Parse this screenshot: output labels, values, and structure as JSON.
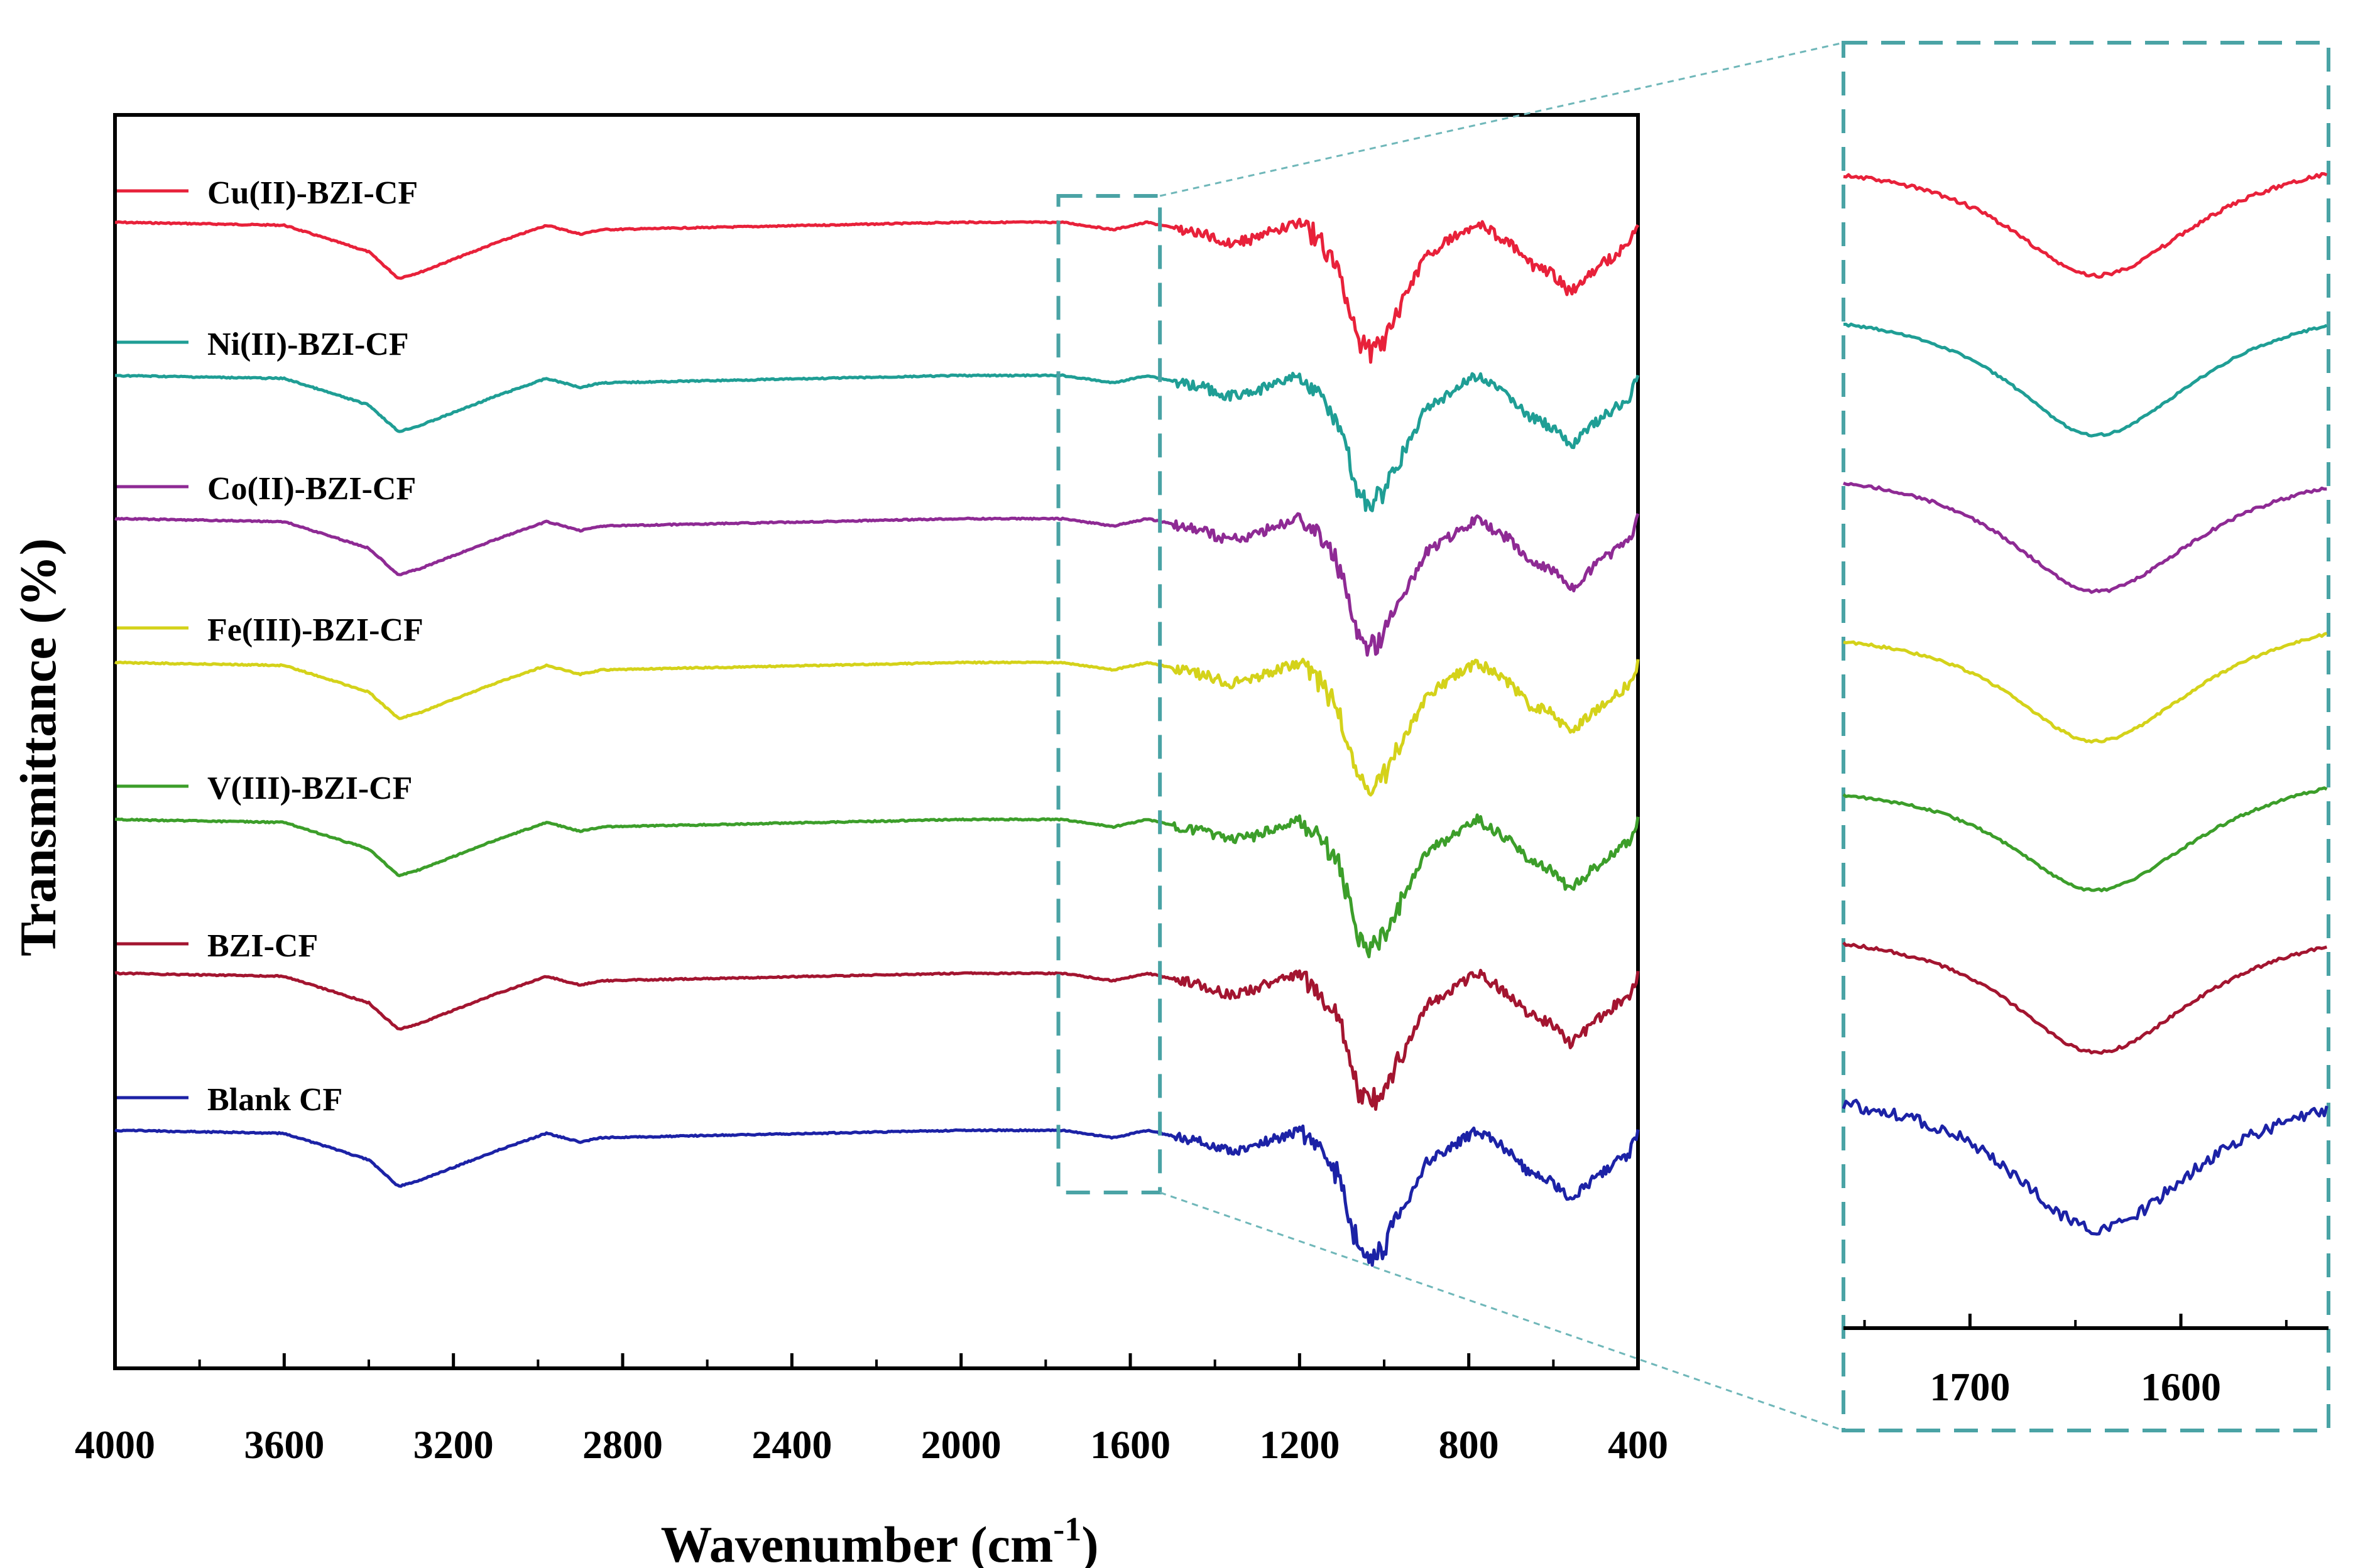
{
  "chart_data": [
    {
      "type": "line",
      "title": "",
      "xlabel": "Wavenumber",
      "xlabel_unit_base": "(cm",
      "xlabel_unit_exp": "-1",
      "xlabel_unit_close": ")",
      "ylabel": "Transmittance (%)",
      "xlim": [
        4000,
        400
      ],
      "x_reversed": true,
      "x_ticks": [
        "4000",
        "3600",
        "3200",
        "2800",
        "2400",
        "2000",
        "1600",
        "1200",
        "800",
        "400"
      ],
      "x_tick_values": [
        4000,
        3600,
        3200,
        2800,
        2400,
        2000,
        1600,
        1200,
        800,
        400
      ],
      "y_ticks_shown": false,
      "series": [
        {
          "name": "Cu(II)-BZI-CF",
          "color": "#e8213a"
        },
        {
          "name": "Ni(II)-BZI-CF",
          "color": "#1f9e95"
        },
        {
          "name": "Co(II)-BZI-CF",
          "color": "#8e2a94"
        },
        {
          "name": "Fe(III)-BZI-CF",
          "color": "#d4d21a"
        },
        {
          "name": "V(III)-BZI-CF",
          "color": "#3c9e2a"
        },
        {
          "name": "BZI-CF",
          "color": "#a31530"
        },
        {
          "name": "Blank CF",
          "color": "#1c22a6"
        }
      ],
      "spectrum_features": {
        "x": [
          4000,
          3600,
          3400,
          3330,
          3280,
          3100,
          2980,
          2900,
          2850,
          2000,
          1760,
          1640,
          1560,
          1430,
          1370,
          1320,
          1200,
          1160,
          1110,
          1060,
          1030,
          1000,
          900,
          780,
          700,
          660,
          600,
          560,
          500,
          420,
          400
        ],
        "depth": [
          0.0,
          0.02,
          0.2,
          0.38,
          0.34,
          0.14,
          0.02,
          0.08,
          0.05,
          0.0,
          0.0,
          0.05,
          0.0,
          0.08,
          0.14,
          0.12,
          0.0,
          0.1,
          0.3,
          0.8,
          0.88,
          0.78,
          0.22,
          0.0,
          0.15,
          0.28,
          0.35,
          0.48,
          0.32,
          0.15,
          0.0
        ]
      },
      "zoom_window": [
        1770,
        1530
      ]
    },
    {
      "type": "line",
      "title": "",
      "panel": "inset zoom",
      "xlim": [
        1760,
        1530
      ],
      "x_reversed": true,
      "x_ticks": [
        "1700",
        "1600"
      ],
      "x_tick_values": [
        1700,
        1600
      ],
      "band_center": 1640,
      "series": [
        {
          "name": "Cu(II)-BZI-CF",
          "color": "#e8213a"
        },
        {
          "name": "Ni(II)-BZI-CF",
          "color": "#1f9e95"
        },
        {
          "name": "Co(II)-BZI-CF",
          "color": "#8e2a94"
        },
        {
          "name": "Fe(III)-BZI-CF",
          "color": "#d4d21a"
        },
        {
          "name": "V(III)-BZI-CF",
          "color": "#3c9e2a"
        },
        {
          "name": "BZI-CF",
          "color": "#a31530"
        },
        {
          "name": "Blank CF",
          "color": "#1c22a6"
        }
      ]
    }
  ]
}
